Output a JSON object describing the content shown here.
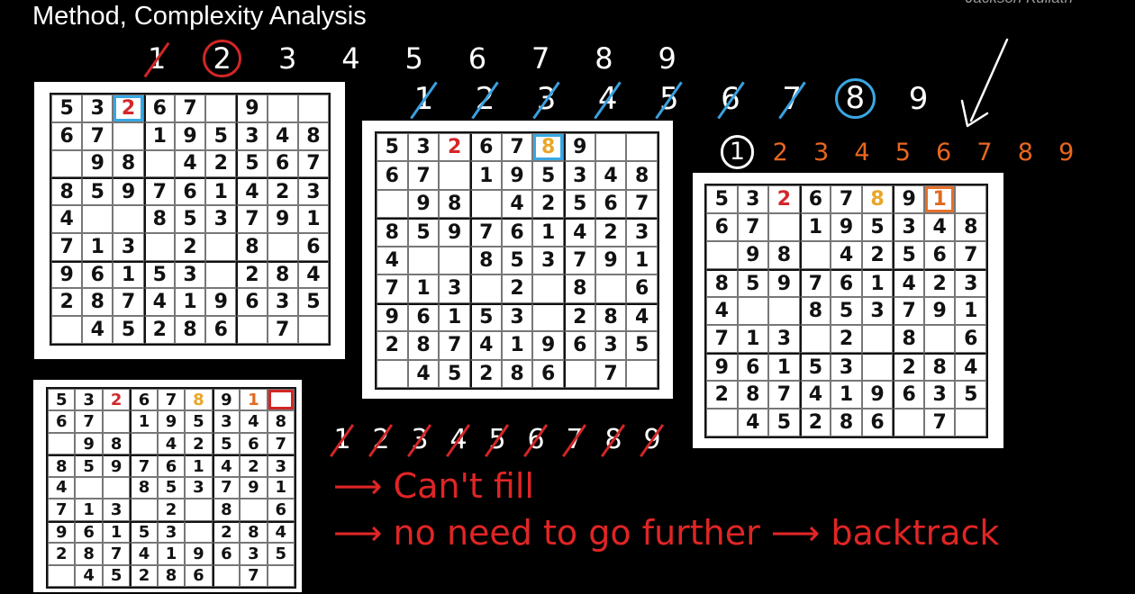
{
  "title": "Method, Complexity Analysis",
  "watermark": "Jackson Kuliath",
  "base_puzzle": [
    [
      "5",
      "3",
      "",
      "6",
      "7",
      "",
      "9",
      "",
      ""
    ],
    [
      "6",
      "7",
      "",
      "1",
      "9",
      "5",
      "3",
      "4",
      "8"
    ],
    [
      "",
      "9",
      "8",
      "",
      "4",
      "2",
      "5",
      "6",
      "7"
    ],
    [
      "8",
      "5",
      "9",
      "7",
      "6",
      "1",
      "4",
      "2",
      "3"
    ],
    [
      "4",
      "",
      "",
      "8",
      "5",
      "3",
      "7",
      "9",
      "1"
    ],
    [
      "7",
      "1",
      "3",
      "",
      "2",
      "",
      "8",
      "",
      "6"
    ],
    [
      "9",
      "6",
      "1",
      "5",
      "3",
      "",
      "2",
      "8",
      "4"
    ],
    [
      "2",
      "8",
      "7",
      "4",
      "1",
      "9",
      "6",
      "3",
      "5"
    ],
    [
      "",
      "4",
      "5",
      "2",
      "8",
      "6",
      "",
      "7",
      ""
    ]
  ],
  "grids": [
    {
      "fills": [
        {
          "r": 0,
          "c": 2,
          "v": "2",
          "color": "red"
        }
      ],
      "highlight": {
        "r": 0,
        "c": 2,
        "color": "blue"
      }
    },
    {
      "fills": [
        {
          "r": 0,
          "c": 2,
          "v": "2",
          "color": "red"
        },
        {
          "r": 0,
          "c": 5,
          "v": "8",
          "color": "gold"
        }
      ],
      "highlight": {
        "r": 0,
        "c": 5,
        "color": "blue"
      }
    },
    {
      "fills": [
        {
          "r": 0,
          "c": 2,
          "v": "2",
          "color": "red"
        },
        {
          "r": 0,
          "c": 5,
          "v": "8",
          "color": "gold"
        },
        {
          "r": 0,
          "c": 7,
          "v": "1",
          "color": "orange"
        }
      ],
      "highlight": {
        "r": 0,
        "c": 7,
        "color": "orange"
      }
    },
    {
      "fills": [
        {
          "r": 0,
          "c": 2,
          "v": "2",
          "color": "red"
        },
        {
          "r": 0,
          "c": 5,
          "v": "8",
          "color": "gold"
        },
        {
          "r": 0,
          "c": 7,
          "v": "1",
          "color": "orange"
        }
      ],
      "highlight": {
        "r": 0,
        "c": 8,
        "color": "red"
      }
    }
  ],
  "sequences": [
    {
      "digits": [
        "1",
        "2",
        "3",
        "4",
        "5",
        "6",
        "7",
        "8",
        "9"
      ],
      "color": "#ffffff",
      "struck": [
        "1"
      ],
      "circled": [
        "2"
      ]
    },
    {
      "digits": [
        "1",
        "2",
        "3",
        "4",
        "5",
        "6",
        "7",
        "8",
        "9"
      ],
      "color": "#ffffff",
      "struck": [
        "1",
        "2",
        "3",
        "4",
        "5",
        "6",
        "7"
      ],
      "circled": [
        "8"
      ]
    },
    {
      "digits": [
        "1",
        "2",
        "3",
        "4",
        "5",
        "6",
        "7",
        "8",
        "9"
      ],
      "color": "#e8671f",
      "struck": [],
      "circled": [
        "1"
      ]
    },
    {
      "digits": [
        "1",
        "2",
        "3",
        "4",
        "5",
        "6",
        "7",
        "8",
        "9"
      ],
      "color": "#ffffff",
      "struck": [
        "1",
        "2",
        "3",
        "4",
        "5",
        "6",
        "7",
        "8",
        "9"
      ],
      "circled": []
    }
  ],
  "notes": {
    "line1": "⟶ Can't fill",
    "line2": "⟶ no need to go further ⟶ backtrack"
  },
  "colors": {
    "red": "#d4272a",
    "gold": "#e8a628",
    "orange": "#e06a20",
    "blue": "#39a7e3",
    "strike_blue": "#3ba0e0",
    "strike_red": "#d32626"
  }
}
